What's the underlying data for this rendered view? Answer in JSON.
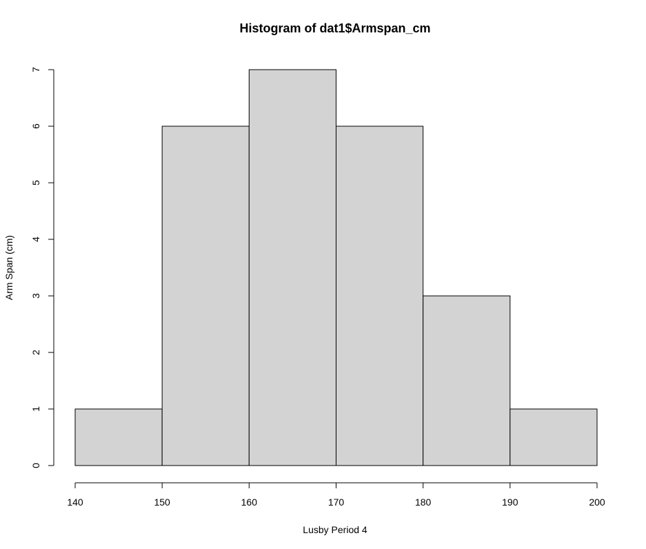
{
  "chart_data": {
    "type": "bar",
    "title": "Histogram of dat1$Armspan_cm",
    "xlabel": "Lusby Period 4",
    "ylabel": "Arm Span (cm)",
    "bins": [
      {
        "start": 140,
        "end": 150,
        "count": 1
      },
      {
        "start": 150,
        "end": 160,
        "count": 6
      },
      {
        "start": 160,
        "end": 170,
        "count": 7
      },
      {
        "start": 170,
        "end": 180,
        "count": 6
      },
      {
        "start": 180,
        "end": 190,
        "count": 3
      },
      {
        "start": 190,
        "end": 200,
        "count": 1
      }
    ],
    "xlim": [
      140,
      200
    ],
    "ylim": [
      0,
      7
    ],
    "x_ticks": [
      140,
      150,
      160,
      170,
      180,
      190,
      200
    ],
    "y_ticks": [
      0,
      1,
      2,
      3,
      4,
      5,
      6,
      7
    ],
    "grid": false,
    "colors": {
      "bar_fill": "#d3d3d3",
      "bar_stroke": "#000000"
    }
  }
}
